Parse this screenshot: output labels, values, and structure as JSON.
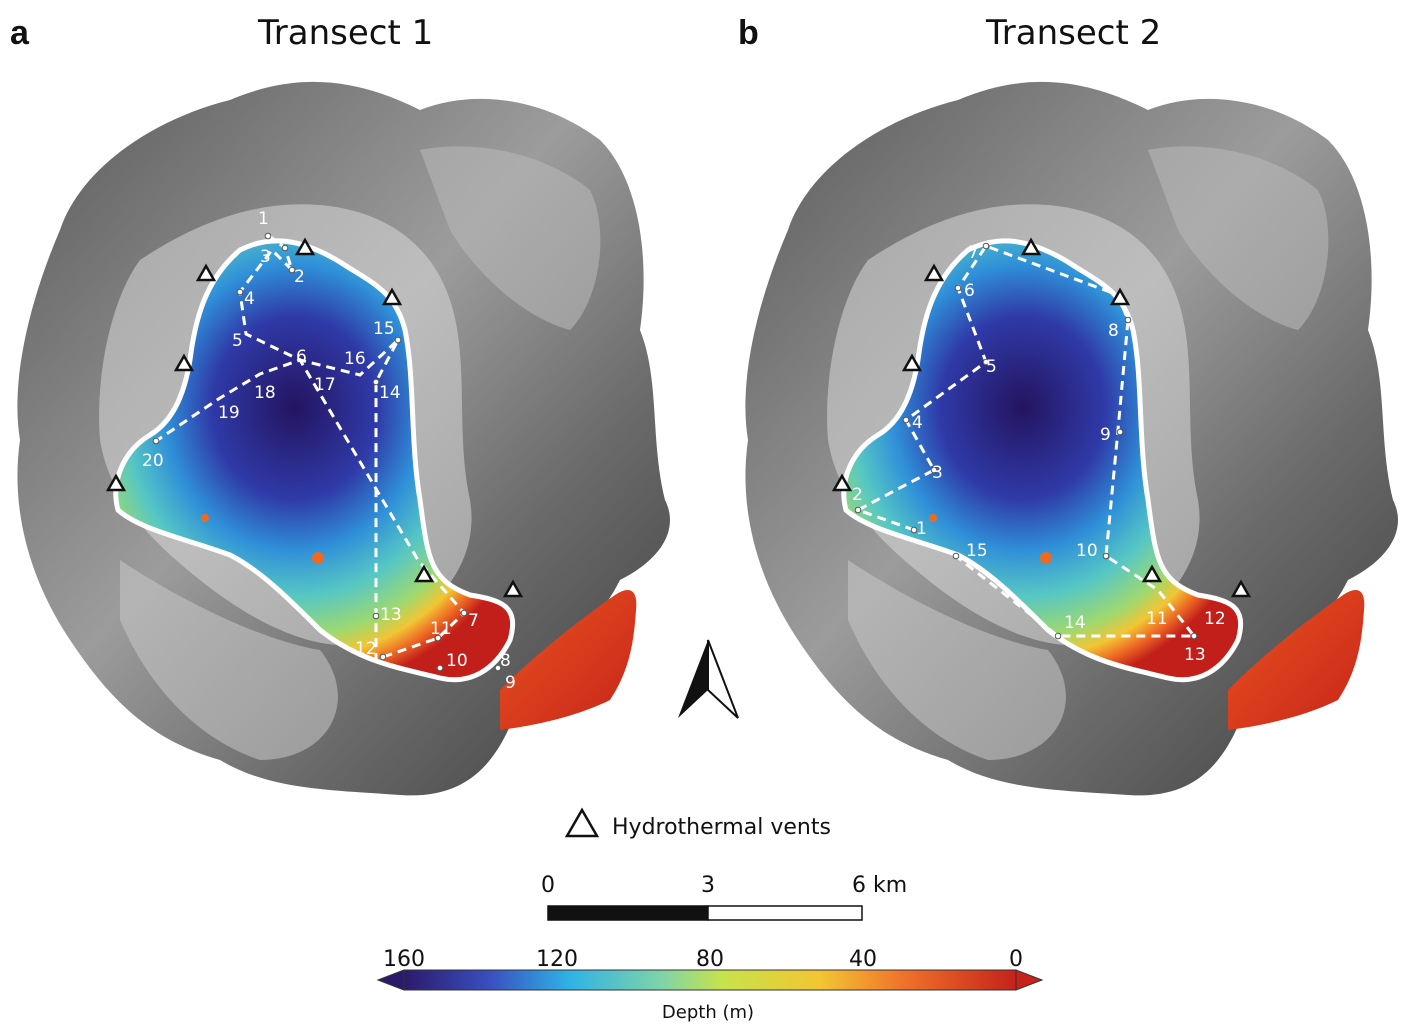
{
  "panels": [
    {
      "letter": "a",
      "title": "Transect 1",
      "stations": [
        "1",
        "2",
        "3",
        "4",
        "5",
        "6",
        "7",
        "8",
        "9",
        "10",
        "11",
        "12",
        "13",
        "14",
        "15",
        "16",
        "17",
        "18",
        "19",
        "20"
      ]
    },
    {
      "letter": "b",
      "title": "Transect 2",
      "stations": [
        "1",
        "2",
        "3",
        "4",
        "5",
        "6",
        "7",
        "8",
        "9",
        "10",
        "11",
        "12",
        "13",
        "14",
        "15"
      ]
    }
  ],
  "legend": {
    "vent_label": "Hydrothermal vents",
    "vent_icon": "triangle-outline-icon"
  },
  "scale_bar": {
    "ticks": [
      "0",
      "3",
      "6 km"
    ]
  },
  "colorbar": {
    "title": "Depth (m)",
    "ticks": [
      "160",
      "120",
      "80",
      "40",
      "0"
    ],
    "min": 160,
    "max": 0,
    "colors": [
      "#2b1a6b",
      "#3a4fc0",
      "#2fb2e6",
      "#7fd3a8",
      "#c6e34a",
      "#f3c533",
      "#f0702a",
      "#c4221a"
    ]
  },
  "north_arrow": {
    "icon": "north-arrow-icon"
  }
}
